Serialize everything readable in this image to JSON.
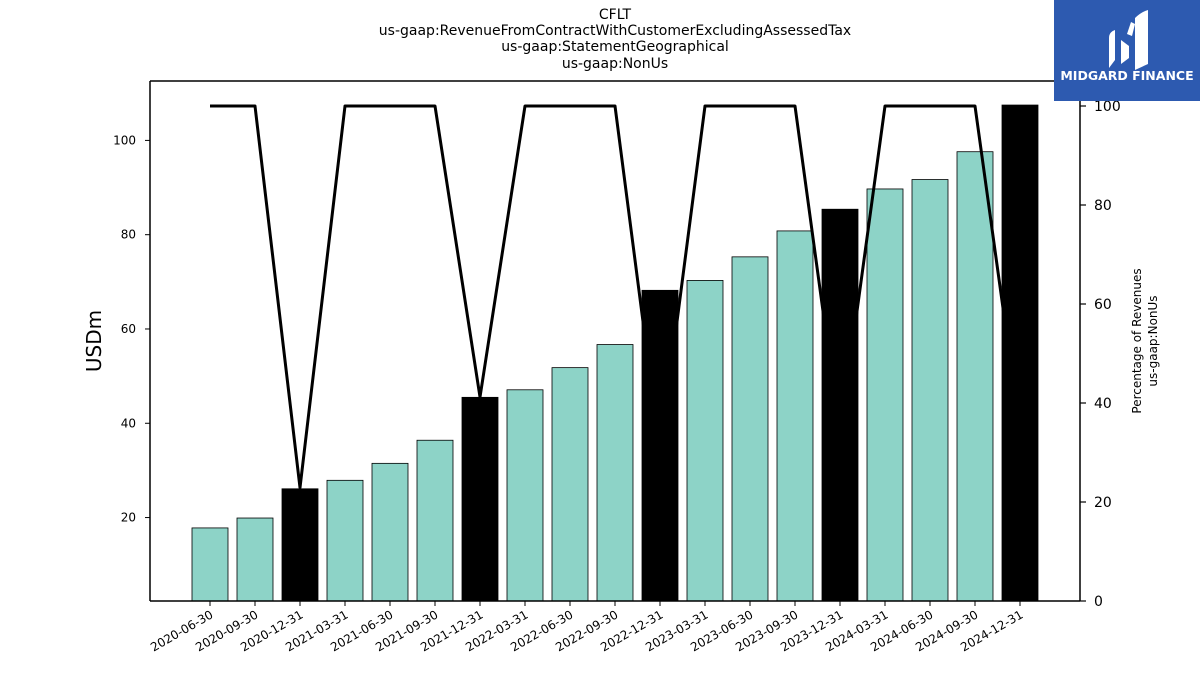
{
  "title_lines": [
    "CFLT",
    "us-gaap:RevenueFromContractWithCustomerExcludingAssessedTax",
    "us-gaap:StatementGeographical",
    "us-gaap:NonUs"
  ],
  "logo": {
    "text": "MIDGARD FINANCE",
    "background": "#2d5ab0",
    "icon": "midgard-logo-icon"
  },
  "chart_data": {
    "type": "bar",
    "categories": [
      "2020-06-30",
      "2020-09-30",
      "2020-12-31",
      "2021-03-31",
      "2021-06-30",
      "2021-09-30",
      "2021-12-31",
      "2022-03-31",
      "2022-06-30",
      "2022-09-30",
      "2022-12-31",
      "2023-03-31",
      "2023-06-30",
      "2023-09-30",
      "2023-12-31",
      "2024-03-31",
      "2024-06-30",
      "2024-09-30",
      "2024-12-31"
    ],
    "series": [
      {
        "axis": "left",
        "kind": "bar",
        "values": [
          17.8,
          19.9,
          26.1,
          27.9,
          31.5,
          36.4,
          45.5,
          47.1,
          51.8,
          56.7,
          68.2,
          70.3,
          75.3,
          80.8,
          85.4,
          89.7,
          91.7,
          97.6,
          107.5
        ]
      },
      {
        "axis": "right",
        "kind": "line",
        "values": [
          100,
          100,
          22.9,
          100,
          100,
          100,
          41.2,
          100,
          100,
          100,
          30,
          100,
          100,
          100,
          33.4,
          100,
          100,
          100,
          34.4
        ]
      }
    ],
    "bar_colors": {
      "quarter": "#8dd3c7",
      "fiscal_year_end": "#000000"
    },
    "highlighted_categories": [
      "2020-12-31",
      "2021-12-31",
      "2022-12-31",
      "2023-12-31",
      "2024-12-31"
    ],
    "line_color": "#000000",
    "ylabel": "USDm",
    "ylabel_right": [
      "Percentage of Revenues",
      "us-gaap:NonUs"
    ],
    "ylim": [
      2.3,
      112.6
    ],
    "ylim_right": [
      0,
      100
    ],
    "yticks": [
      20,
      40,
      60,
      80,
      100
    ],
    "yticks_right": [
      0,
      20,
      40,
      60,
      80,
      100
    ],
    "grid": false
  }
}
